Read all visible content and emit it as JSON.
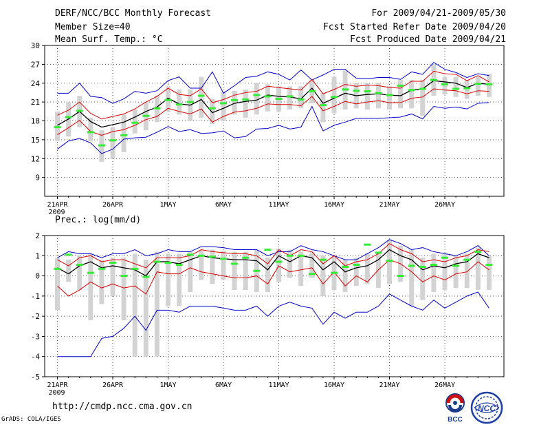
{
  "header": {
    "title": "DERF/NCC/BCC Monthly Forecast",
    "member_size": "Member Size=40",
    "variable1": "Mean Surf. Temp.: °C",
    "period": "For 2009/04/21-2009/05/30",
    "start_date": "Fcst Started Refer Date 2009/04/20",
    "produced_date": "Fcst Produced Date 2009/04/21"
  },
  "footer": {
    "url": "http://cmdp.ncc.cma.gov.cn",
    "credit": "GrADS: COLA/IGES",
    "logo_bcc": "BCC",
    "logo_ncc": "NCC"
  },
  "colors": {
    "envelope": "#0000cc",
    "std": "#dd0000",
    "mean": "#000000",
    "median": "#33ee33",
    "spread_bar": "#d3d3d3",
    "grid": "#555555"
  },
  "chart_data": [
    {
      "type": "line",
      "title": "Mean Surf. Temp.: °C",
      "x_tick_labels": [
        "21APR",
        "26APR",
        "1MAY",
        "6MAY",
        "11MAY",
        "16MAY",
        "21MAY",
        "26MAY"
      ],
      "x_tick_days": [
        1,
        6,
        11,
        16,
        21,
        26,
        31,
        36
      ],
      "year_label": "2009",
      "days": 40,
      "ylim": [
        6,
        30
      ],
      "yticks": [
        9,
        12,
        15,
        18,
        21,
        24,
        27,
        30
      ],
      "series": [
        {
          "name": "max",
          "values": [
            13.5,
            14.8,
            15.2,
            14.5,
            12.8,
            13.5,
            15.1,
            15.3,
            15.4,
            16.2,
            17.1,
            16.3,
            16.6,
            16.0,
            16.1,
            16.4,
            15.3,
            15.5,
            16.7,
            16.8,
            17.3,
            16.7,
            17.0,
            20.3,
            16.4,
            17.3,
            17.8,
            18.4,
            18.4,
            18.4,
            18.5,
            18.6,
            19.1,
            18.3,
            20.3,
            20.0,
            20.2,
            19.9,
            20.8,
            20.9
          ]
        },
        {
          "name": "min",
          "values": [
            22.4,
            22.4,
            24.0,
            21.9,
            21.7,
            20.8,
            21.5,
            22.7,
            22.4,
            22.8,
            24.4,
            25.0,
            23.2,
            23.2,
            25.8,
            22.4,
            23.6,
            24.9,
            25.1,
            25.8,
            25.4,
            24.5,
            26.1,
            24.5,
            25.3,
            26.2,
            26.2,
            24.8,
            24.7,
            24.9,
            24.9,
            24.6,
            25.8,
            25.4,
            27.3,
            26.2,
            25.7,
            24.9,
            25.5,
            25.2
          ]
        },
        {
          "name": "mean",
          "values": [
            17.3,
            18.3,
            19.5,
            17.9,
            17.0,
            17.4,
            17.8,
            18.6,
            19.5,
            20.2,
            21.6,
            20.7,
            20.5,
            21.4,
            19.3,
            20.0,
            20.8,
            21.1,
            21.3,
            22.1,
            21.9,
            21.8,
            21.5,
            23.2,
            20.8,
            21.6,
            22.4,
            22.0,
            22.2,
            22.3,
            22.1,
            22.0,
            22.9,
            23.1,
            24.4,
            24.2,
            24.0,
            23.3,
            24.0,
            23.8
          ]
        },
        {
          "name": "mean_plus_sd",
          "values": [
            18.9,
            19.7,
            21.0,
            19.2,
            18.3,
            18.7,
            19.1,
            19.9,
            21.0,
            21.9,
            23.2,
            22.2,
            22.0,
            23.1,
            20.9,
            21.4,
            22.1,
            22.5,
            22.7,
            23.5,
            23.3,
            23.1,
            22.9,
            24.6,
            22.3,
            23.0,
            23.8,
            23.5,
            23.7,
            23.6,
            23.3,
            23.2,
            24.3,
            24.3,
            25.9,
            25.5,
            25.4,
            24.4,
            25.2,
            24.2
          ]
        },
        {
          "name": "mean_minus_sd",
          "values": [
            15.8,
            16.9,
            18.1,
            16.3,
            15.7,
            16.3,
            16.6,
            17.3,
            18.2,
            18.7,
            20.0,
            19.5,
            19.1,
            19.9,
            17.8,
            18.7,
            19.4,
            19.6,
            20.0,
            20.7,
            20.6,
            20.6,
            20.4,
            21.9,
            19.6,
            20.3,
            21.1,
            20.7,
            21.0,
            21.2,
            20.9,
            20.9,
            21.6,
            21.8,
            23.1,
            22.9,
            22.8,
            22.3,
            22.8,
            22.7
          ]
        },
        {
          "name": "median",
          "values": [
            17.0,
            18.6,
            19.6,
            16.2,
            14.1,
            14.9,
            15.7,
            17.7,
            18.8,
            20.0,
            21.3,
            20.6,
            21.0,
            22.0,
            20.0,
            20.8,
            21.3,
            21.4,
            22.1,
            21.9,
            21.5,
            21.9,
            21.4,
            22.7,
            20.5,
            21.8,
            23.0,
            22.8,
            22.7,
            22.4,
            22.1,
            23.6,
            22.9,
            23.1,
            24.5,
            23.8,
            23.1,
            23.2,
            23.9,
            23.8
          ]
        },
        {
          "name": "spread_low",
          "values": [
            14.8,
            15.5,
            17.0,
            14.8,
            11.5,
            12.0,
            13.0,
            16.0,
            16.5,
            17.8,
            19.5,
            19.0,
            18.0,
            18.5,
            17.5,
            18.0,
            19.0,
            18.5,
            19.0,
            19.5,
            19.5,
            19.8,
            20.0,
            20.8,
            17.8,
            19.2,
            19.8,
            20.0,
            19.8,
            20.0,
            19.8,
            20.0,
            20.0,
            18.8,
            22.0,
            22.2,
            21.8,
            21.5,
            22.0,
            21.8
          ]
        },
        {
          "name": "spread_high",
          "values": [
            19.5,
            21.0,
            22.0,
            18.5,
            16.5,
            17.0,
            19.0,
            19.8,
            21.0,
            22.0,
            23.5,
            23.0,
            23.0,
            25.0,
            21.5,
            22.5,
            22.8,
            23.0,
            24.0,
            23.8,
            23.5,
            23.5,
            23.5,
            24.5,
            22.5,
            25.0,
            26.0,
            24.0,
            24.0,
            24.0,
            23.5,
            24.5,
            24.5,
            24.5,
            27.0,
            25.0,
            25.0,
            24.5,
            25.0,
            25.5
          ]
        }
      ]
    },
    {
      "type": "line",
      "title": "Prec.: log(mm/d)",
      "x_tick_labels": [
        "21APR",
        "26APR",
        "1MAY",
        "6MAY",
        "11MAY",
        "16MAY",
        "21MAY",
        "26MAY"
      ],
      "x_tick_days": [
        1,
        6,
        11,
        16,
        21,
        26,
        31,
        36
      ],
      "year_label": "2009",
      "days": 40,
      "ylim": [
        -5,
        2
      ],
      "yticks": [
        -5,
        -4,
        -3,
        -2,
        -1,
        0,
        1,
        2
      ],
      "series": [
        {
          "name": "max",
          "values": [
            0.9,
            1.2,
            1.1,
            1.1,
            0.9,
            1.1,
            1.1,
            1.3,
            1.0,
            1.1,
            1.3,
            1.2,
            1.2,
            1.45,
            1.45,
            1.4,
            1.3,
            1.3,
            1.3,
            1.0,
            1.2,
            1.2,
            1.5,
            1.3,
            1.2,
            1.0,
            0.8,
            0.8,
            1.1,
            1.4,
            1.8,
            1.6,
            1.3,
            1.4,
            1.2,
            1.1,
            1.0,
            1.2,
            1.5,
            1.0
          ]
        },
        {
          "name": "min",
          "values": [
            -4.0,
            -4.0,
            -4.0,
            -4.0,
            -3.1,
            -3.0,
            -2.6,
            -2.0,
            -2.7,
            -1.7,
            -1.7,
            -1.8,
            -1.5,
            -1.5,
            -1.5,
            -1.6,
            -1.7,
            -1.7,
            -1.5,
            -2.0,
            -1.5,
            -1.3,
            -1.5,
            -1.6,
            -2.4,
            -1.8,
            -2.1,
            -1.8,
            -1.8,
            -1.5,
            -0.9,
            -1.2,
            -1.5,
            -1.7,
            -1.2,
            -1.6,
            -1.3,
            -1.0,
            -0.8,
            -1.6
          ]
        },
        {
          "name": "mean",
          "values": [
            0.4,
            0.1,
            0.5,
            0.7,
            0.4,
            0.5,
            0.4,
            0.3,
            0.0,
            0.7,
            0.7,
            0.6,
            0.8,
            1.0,
            0.9,
            0.85,
            0.8,
            0.8,
            0.75,
            0.3,
            1.0,
            0.7,
            1.0,
            0.9,
            0.3,
            0.7,
            0.2,
            0.4,
            0.5,
            0.8,
            1.3,
            1.0,
            0.8,
            0.3,
            0.5,
            0.4,
            0.6,
            0.7,
            1.1,
            0.9
          ]
        },
        {
          "name": "mean_plus_sd",
          "values": [
            0.8,
            0.5,
            0.9,
            1.0,
            0.7,
            0.8,
            0.8,
            0.6,
            0.4,
            0.9,
            0.9,
            0.9,
            1.0,
            1.3,
            1.2,
            1.15,
            1.1,
            1.1,
            1.0,
            0.6,
            1.3,
            1.0,
            1.3,
            1.2,
            0.6,
            1.0,
            0.5,
            0.7,
            0.8,
            1.1,
            1.6,
            1.3,
            1.1,
            0.7,
            0.8,
            0.7,
            0.9,
            1.0,
            1.3,
            1.2
          ]
        },
        {
          "name": "mean_minus_sd",
          "values": [
            -0.5,
            -1.0,
            -0.7,
            -0.3,
            -0.6,
            -0.4,
            -0.6,
            -0.5,
            -0.9,
            0.2,
            0.1,
            0.1,
            0.4,
            0.2,
            0.1,
            0.0,
            -0.1,
            -0.1,
            0.0,
            -0.4,
            0.5,
            0.2,
            0.3,
            0.4,
            -0.4,
            0.2,
            -0.5,
            0.0,
            -0.3,
            0.3,
            0.8,
            0.6,
            0.2,
            -0.3,
            0.0,
            -0.2,
            0.1,
            0.2,
            0.7,
            0.3
          ]
        },
        {
          "name": "median",
          "values": [
            0.35,
            1.05,
            0.55,
            0.15,
            0.35,
            0.65,
            0.0,
            0.35,
            -0.05,
            0.7,
            0.65,
            0.55,
            1.05,
            1.0,
            0.95,
            0.85,
            0.6,
            0.9,
            0.25,
            1.3,
            0.7,
            1.0,
            1.0,
            0.1,
            0.8,
            0.15,
            0.45,
            0.55,
            1.55,
            1.15,
            0.75,
            0.0,
            0.5,
            0.45,
            0.55,
            0.9,
            0.5,
            0.8,
            1.2,
            0.55
          ]
        },
        {
          "name": "spread_low",
          "values": [
            -1.7,
            -0.3,
            -0.7,
            -2.2,
            -1.4,
            -1.0,
            -2.2,
            -4.0,
            -4.0,
            -4.0,
            -1.5,
            -1.5,
            -0.8,
            -0.2,
            -0.4,
            -0.2,
            -0.7,
            -0.7,
            -0.8,
            -0.8,
            -0.3,
            -0.1,
            -0.5,
            -0.1,
            -1.0,
            -0.7,
            -0.8,
            -0.5,
            -0.4,
            -0.6,
            -0.4,
            -0.3,
            -1.5,
            -1.2,
            -0.8,
            -0.7,
            -0.6,
            -0.6,
            -0.7,
            -0.7
          ]
        },
        {
          "name": "spread_high",
          "values": [
            0.9,
            0.8,
            1.0,
            1.1,
            0.8,
            0.9,
            0.9,
            1.1,
            0.8,
            1.2,
            1.1,
            1.1,
            1.2,
            1.3,
            1.3,
            1.25,
            1.2,
            1.2,
            1.3,
            0.9,
            1.35,
            1.3,
            1.2,
            1.2,
            1.0,
            1.0,
            0.8,
            0.9,
            1.1,
            1.2,
            1.8,
            1.5,
            1.3,
            0.9,
            1.1,
            1.1,
            1.0,
            1.1,
            1.4,
            1.0
          ]
        }
      ]
    }
  ]
}
